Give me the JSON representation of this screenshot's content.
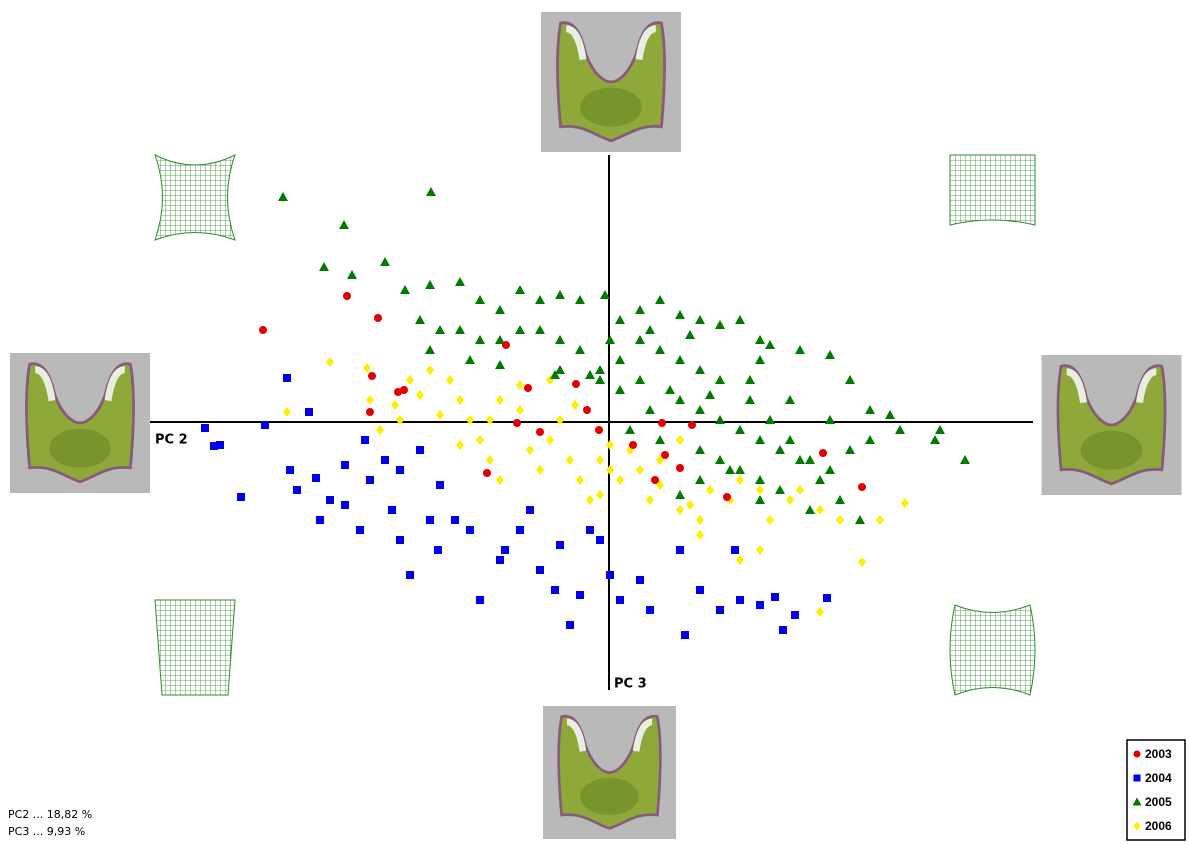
{
  "chart_data": {
    "type": "scatter",
    "x_label": "PC 2",
    "y_label": "PC 3",
    "notes": [
      "PC2 ... 18,82 %",
      "PC3 ... 9,93 %"
    ],
    "xlim": [
      -0.46,
      0.423
    ],
    "ylim": [
      -0.268,
      0.267
    ],
    "legend": "lower right",
    "series": [
      {
        "name": "2003",
        "color": "#e00000",
        "marker": "circle",
        "x": [
          -0.347,
          -0.263,
          -0.232,
          -0.238,
          -0.212,
          -0.206,
          -0.24,
          -0.104,
          -0.082,
          -0.034,
          -0.023,
          -0.07,
          -0.093,
          -0.123,
          -0.011,
          0.023,
          0.052,
          0.055,
          0.07,
          0.082,
          0.117,
          0.213,
          0.252,
          0.045
        ],
        "y": [
          0.092,
          0.126,
          0.104,
          0.046,
          0.03,
          0.032,
          0.01,
          0.077,
          0.034,
          0.038,
          0.012,
          -0.01,
          -0.001,
          -0.051,
          -0.008,
          -0.023,
          -0.001,
          -0.033,
          -0.046,
          -0.003,
          -0.075,
          -0.031,
          -0.065,
          -0.058
        ]
      },
      {
        "name": "2004",
        "color": "#0000ee",
        "marker": "square",
        "x": [
          -0.405,
          -0.396,
          -0.39,
          -0.369,
          -0.345,
          -0.323,
          -0.301,
          -0.32,
          -0.313,
          -0.294,
          -0.29,
          -0.28,
          -0.265,
          -0.25,
          -0.24,
          -0.225,
          -0.218,
          -0.21,
          -0.19,
          -0.18,
          -0.172,
          -0.155,
          -0.14,
          -0.13,
          -0.11,
          -0.09,
          -0.07,
          -0.055,
          -0.04,
          -0.03,
          -0.01,
          0.0,
          0.01,
          0.03,
          0.04,
          0.07,
          0.075,
          0.09,
          0.11,
          0.125,
          0.13,
          0.15,
          0.165,
          0.173,
          0.185,
          0.217,
          -0.245,
          -0.265,
          -0.21,
          -0.17,
          -0.105,
          -0.08,
          -0.05,
          -0.2,
          -0.02
        ],
        "y": [
          -0.006,
          -0.024,
          -0.023,
          -0.075,
          -0.003,
          0.044,
          0.01,
          -0.048,
          -0.068,
          -0.056,
          -0.098,
          -0.078,
          -0.083,
          -0.108,
          -0.058,
          -0.038,
          -0.088,
          -0.118,
          -0.028,
          -0.098,
          -0.128,
          -0.098,
          -0.108,
          -0.178,
          -0.138,
          -0.108,
          -0.148,
          -0.168,
          -0.203,
          -0.173,
          -0.118,
          -0.153,
          -0.178,
          -0.158,
          -0.188,
          -0.128,
          -0.213,
          -0.168,
          -0.188,
          -0.128,
          -0.178,
          -0.183,
          -0.175,
          -0.208,
          -0.193,
          -0.176,
          -0.018,
          -0.043,
          -0.048,
          -0.063,
          -0.128,
          -0.088,
          -0.123,
          -0.153,
          -0.108
        ]
      },
      {
        "name": "2005",
        "color": "#007a00",
        "marker": "triangle",
        "x": [
          -0.327,
          -0.179,
          -0.266,
          -0.286,
          -0.225,
          -0.258,
          -0.205,
          -0.18,
          -0.15,
          -0.13,
          -0.11,
          -0.09,
          -0.07,
          -0.05,
          -0.03,
          -0.005,
          0.01,
          0.03,
          0.05,
          0.07,
          0.09,
          0.11,
          0.13,
          0.15,
          0.16,
          0.19,
          0.22,
          0.24,
          0.26,
          0.28,
          0.325,
          0.355,
          0.33,
          0.29,
          0.26,
          0.24,
          0.22,
          0.2,
          0.18,
          0.16,
          0.14,
          0.11,
          0.09,
          0.07,
          0.05,
          0.03,
          0.01,
          -0.01,
          -0.03,
          -0.05,
          -0.07,
          -0.09,
          -0.11,
          -0.13,
          -0.15,
          -0.17,
          -0.19,
          -0.18,
          -0.14,
          -0.11,
          -0.05,
          -0.01,
          0.01,
          0.03,
          0.07,
          0.09,
          0.11,
          0.13,
          0.15,
          0.17,
          0.19,
          0.21,
          0.23,
          0.25,
          0.2,
          0.17,
          0.15,
          0.13,
          0.11,
          0.09,
          0.07,
          0.09,
          0.12,
          0.15,
          0.04,
          0.06,
          0.1,
          0.14,
          0.18,
          0.22,
          0.15,
          0.08,
          0.04,
          0.0,
          -0.02,
          0.02,
          0.05,
          -0.055
        ],
        "y": [
          0.225,
          0.23,
          0.197,
          0.155,
          0.16,
          0.147,
          0.132,
          0.137,
          0.14,
          0.122,
          0.112,
          0.132,
          0.122,
          0.127,
          0.122,
          0.127,
          0.102,
          0.112,
          0.122,
          0.107,
          0.102,
          0.097,
          0.102,
          0.082,
          0.077,
          0.072,
          0.067,
          0.042,
          0.012,
          0.007,
          -0.018,
          -0.038,
          -0.008,
          -0.008,
          -0.018,
          -0.028,
          -0.048,
          -0.038,
          -0.018,
          0.002,
          0.022,
          0.042,
          0.052,
          0.062,
          0.072,
          0.082,
          0.062,
          0.052,
          0.072,
          0.082,
          0.092,
          0.092,
          0.082,
          0.082,
          0.092,
          0.092,
          0.102,
          0.072,
          0.062,
          0.057,
          0.052,
          0.042,
          0.032,
          0.042,
          0.022,
          0.012,
          0.002,
          -0.008,
          -0.018,
          -0.028,
          -0.038,
          -0.058,
          -0.078,
          -0.098,
          -0.088,
          -0.068,
          -0.058,
          -0.048,
          -0.038,
          -0.028,
          -0.073,
          -0.058,
          -0.048,
          -0.078,
          0.012,
          0.032,
          0.027,
          0.042,
          0.022,
          0.002,
          0.062,
          0.087,
          0.092,
          0.082,
          0.047,
          -0.008,
          -0.018,
          0.047
        ]
      },
      {
        "name": "2006",
        "color": "#ffee00",
        "marker": "diamond",
        "x": [
          -0.28,
          -0.323,
          -0.243,
          -0.24,
          -0.23,
          -0.21,
          -0.2,
          -0.18,
          -0.16,
          -0.15,
          -0.14,
          -0.13,
          -0.12,
          -0.11,
          -0.11,
          -0.09,
          -0.08,
          -0.07,
          -0.06,
          -0.05,
          -0.04,
          -0.03,
          -0.02,
          -0.01,
          0.0,
          0.01,
          0.02,
          0.03,
          0.04,
          0.05,
          0.07,
          0.09,
          0.1,
          0.12,
          0.13,
          0.15,
          0.16,
          0.18,
          0.19,
          0.21,
          0.23,
          0.252,
          0.27,
          0.295,
          0.21,
          0.15,
          0.13,
          0.09,
          0.08,
          0.05,
          -0.06,
          -0.035,
          -0.09,
          -0.15,
          -0.19,
          -0.215,
          -0.17,
          -0.12,
          0.0,
          0.07,
          -0.01
        ],
        "y": [
          0.06,
          0.01,
          0.054,
          0.022,
          -0.008,
          0.002,
          0.042,
          0.052,
          0.042,
          0.022,
          0.002,
          -0.018,
          -0.038,
          -0.058,
          0.022,
          0.012,
          -0.028,
          -0.048,
          -0.018,
          0.002,
          -0.038,
          -0.058,
          -0.078,
          -0.038,
          -0.048,
          -0.058,
          -0.028,
          -0.048,
          -0.078,
          -0.038,
          -0.088,
          -0.098,
          -0.068,
          -0.078,
          -0.058,
          -0.068,
          -0.098,
          -0.078,
          -0.068,
          -0.088,
          -0.098,
          -0.14,
          -0.098,
          -0.081,
          -0.19,
          -0.128,
          -0.138,
          -0.113,
          -0.083,
          -0.063,
          0.042,
          0.017,
          0.037,
          -0.023,
          0.027,
          0.017,
          0.007,
          0.002,
          -0.023,
          -0.018,
          -0.073
        ]
      }
    ]
  }
}
